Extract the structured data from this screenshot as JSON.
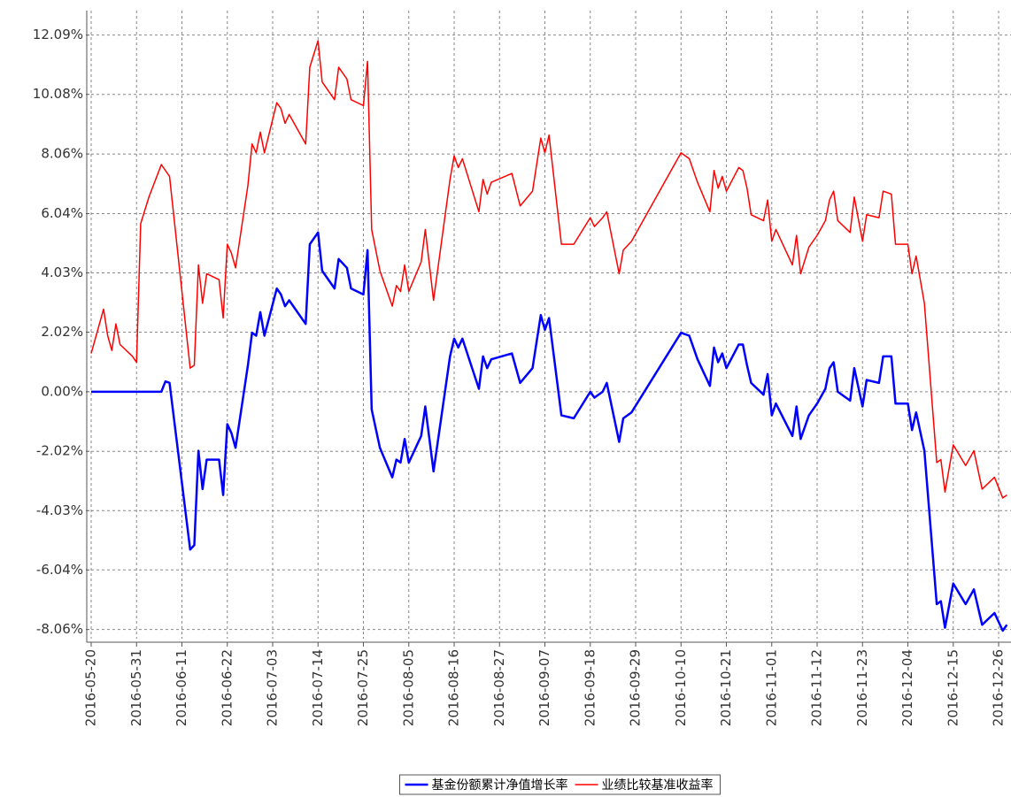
{
  "chart_data": {
    "type": "line",
    "x": [
      "2016-05-20",
      "2016-05-23",
      "2016-05-24",
      "2016-05-25",
      "2016-05-26",
      "2016-05-27",
      "2016-05-30",
      "2016-05-31",
      "2016-06-01",
      "2016-06-03",
      "2016-06-06",
      "2016-06-07",
      "2016-06-08",
      "2016-06-13",
      "2016-06-14",
      "2016-06-15",
      "2016-06-16",
      "2016-06-17",
      "2016-06-20",
      "2016-06-21",
      "2016-06-22",
      "2016-06-23",
      "2016-06-24",
      "2016-06-27",
      "2016-06-28",
      "2016-06-29",
      "2016-06-30",
      "2016-07-01",
      "2016-07-04",
      "2016-07-05",
      "2016-07-06",
      "2016-07-07",
      "2016-07-11",
      "2016-07-12",
      "2016-07-14",
      "2016-07-15",
      "2016-07-18",
      "2016-07-19",
      "2016-07-21",
      "2016-07-22",
      "2016-07-25",
      "2016-07-26",
      "2016-07-27",
      "2016-07-29",
      "2016-08-01",
      "2016-08-02",
      "2016-08-03",
      "2016-08-04",
      "2016-08-05",
      "2016-08-08",
      "2016-08-09",
      "2016-08-11",
      "2016-08-15",
      "2016-08-16",
      "2016-08-17",
      "2016-08-18",
      "2016-08-22",
      "2016-08-23",
      "2016-08-24",
      "2016-08-25",
      "2016-08-30",
      "2016-09-01",
      "2016-09-04",
      "2016-09-06",
      "2016-09-07",
      "2016-09-08",
      "2016-09-11",
      "2016-09-14",
      "2016-09-18",
      "2016-09-19",
      "2016-09-21",
      "2016-09-22",
      "2016-09-25",
      "2016-09-26",
      "2016-09-28",
      "2016-10-10",
      "2016-10-12",
      "2016-10-14",
      "2016-10-17",
      "2016-10-18",
      "2016-10-19",
      "2016-10-20",
      "2016-10-21",
      "2016-10-24",
      "2016-10-25",
      "2016-10-26",
      "2016-10-27",
      "2016-10-30",
      "2016-10-31",
      "2016-11-01",
      "2016-11-02",
      "2016-11-06",
      "2016-11-07",
      "2016-11-08",
      "2016-11-10",
      "2016-11-12",
      "2016-11-14",
      "2016-11-15",
      "2016-11-16",
      "2016-11-17",
      "2016-11-20",
      "2016-11-21",
      "2016-11-23",
      "2016-11-24",
      "2016-11-27",
      "2016-11-28",
      "2016-11-30",
      "2016-12-01",
      "2016-12-04",
      "2016-12-05",
      "2016-12-06",
      "2016-12-08",
      "2016-12-11",
      "2016-12-12",
      "2016-12-13",
      "2016-12-15",
      "2016-12-18",
      "2016-12-20",
      "2016-12-22",
      "2016-12-25",
      "2016-12-27",
      "2016-12-28"
    ],
    "series": [
      {
        "name": "基金份额累计净值增长率",
        "color": "#0000ff",
        "width": 2.5,
        "values": [
          0,
          0,
          0,
          0,
          0,
          0,
          0,
          0,
          0,
          0,
          0,
          0.35,
          0.3,
          -5.35,
          -5.2,
          -2.0,
          -3.3,
          -2.3,
          -2.3,
          -3.5,
          -1.1,
          -1.4,
          -1.9,
          0.9,
          2.0,
          1.9,
          2.7,
          1.9,
          3.5,
          3.3,
          2.9,
          3.1,
          2.3,
          5.0,
          5.4,
          4.1,
          3.5,
          4.5,
          4.2,
          3.5,
          3.3,
          4.8,
          -0.6,
          -1.9,
          -2.9,
          -2.3,
          -2.4,
          -1.6,
          -2.4,
          -1.5,
          -0.5,
          -2.7,
          1.2,
          1.8,
          1.5,
          1.8,
          0.1,
          1.2,
          0.8,
          1.1,
          1.3,
          0.3,
          0.8,
          2.6,
          2.1,
          2.5,
          -0.8,
          -0.9,
          0,
          -0.2,
          0,
          0.3,
          -1.7,
          -0.9,
          -0.7,
          2.0,
          1.9,
          1.1,
          0.2,
          1.5,
          1.0,
          1.3,
          0.8,
          1.6,
          1.6,
          0.9,
          0.3,
          -0.1,
          0.6,
          -0.8,
          -0.4,
          -1.5,
          -0.5,
          -1.6,
          -0.8,
          -0.4,
          0.1,
          0.8,
          1.0,
          0,
          -0.3,
          0.8,
          -0.5,
          0.4,
          0.3,
          1.2,
          1.2,
          -0.4,
          -0.4,
          -1.3,
          -0.7,
          -2.0,
          -7.2,
          -7.1,
          -8.0,
          -6.5,
          -7.2,
          -6.7,
          -7.9,
          -7.5,
          -8.1,
          -7.9
        ]
      },
      {
        "name": "业绩比较基准收益率",
        "color": "#ff0000",
        "width": 1.5,
        "values": [
          1.3,
          2.8,
          1.9,
          1.4,
          2.3,
          1.6,
          1.2,
          1.0,
          5.7,
          6.6,
          7.7,
          7.5,
          7.3,
          0.8,
          0.9,
          4.3,
          3.0,
          4.0,
          3.8,
          2.5,
          5.0,
          4.7,
          4.2,
          7.0,
          8.4,
          8.1,
          8.8,
          8.1,
          9.8,
          9.6,
          9.1,
          9.4,
          8.4,
          11.0,
          11.9,
          10.5,
          9.9,
          11.0,
          10.6,
          9.9,
          9.7,
          11.2,
          5.5,
          4.1,
          2.9,
          3.6,
          3.4,
          4.3,
          3.4,
          4.4,
          5.5,
          3.1,
          7.2,
          8.0,
          7.6,
          7.9,
          6.1,
          7.2,
          6.7,
          7.1,
          7.4,
          6.3,
          6.8,
          8.6,
          8.1,
          8.7,
          5.0,
          5.0,
          5.9,
          5.6,
          5.9,
          6.1,
          4.0,
          4.8,
          5.1,
          8.1,
          7.9,
          7.1,
          6.1,
          7.5,
          6.9,
          7.3,
          6.8,
          7.6,
          7.5,
          6.9,
          6.0,
          5.8,
          6.5,
          5.1,
          5.5,
          4.3,
          5.3,
          4.0,
          4.9,
          5.3,
          5.8,
          6.5,
          6.8,
          5.8,
          5.4,
          6.6,
          5.1,
          6.0,
          5.9,
          6.8,
          6.7,
          5.0,
          5.0,
          4.0,
          4.6,
          3.0,
          -2.4,
          -2.3,
          -3.4,
          -1.8,
          -2.5,
          -2.0,
          -3.3,
          -2.9,
          -3.6,
          -3.5
        ]
      }
    ],
    "xlim": [
      "2016-05-20",
      "2016-12-29"
    ],
    "xticks": [
      "2016-05-20",
      "2016-05-31",
      "2016-06-11",
      "2016-06-22",
      "2016-07-03",
      "2016-07-14",
      "2016-07-25",
      "2016-08-05",
      "2016-08-16",
      "2016-08-27",
      "2016-09-07",
      "2016-09-18",
      "2016-09-29",
      "2016-10-10",
      "2016-10-21",
      "2016-11-01",
      "2016-11-12",
      "2016-11-23",
      "2016-12-04",
      "2016-12-15",
      "2016-12-26"
    ],
    "ylim": [
      -8.37,
      12.92
    ],
    "yticks": [
      {
        "value": -8.06,
        "label": "-8.06%"
      },
      {
        "value": -6.04,
        "label": "-6.04%"
      },
      {
        "value": -4.03,
        "label": "-4.03%"
      },
      {
        "value": -2.02,
        "label": "-2.02%"
      },
      {
        "value": 0,
        "label": "0.00%"
      },
      {
        "value": 2.02,
        "label": "2.02%"
      },
      {
        "value": 4.03,
        "label": "4.03%"
      },
      {
        "value": 6.04,
        "label": "6.04%"
      },
      {
        "value": 8.06,
        "label": "8.06%"
      },
      {
        "value": 10.08,
        "label": "10.08%"
      },
      {
        "value": 12.09,
        "label": "12.09%"
      }
    ],
    "grid": true,
    "legend": "bottom"
  }
}
